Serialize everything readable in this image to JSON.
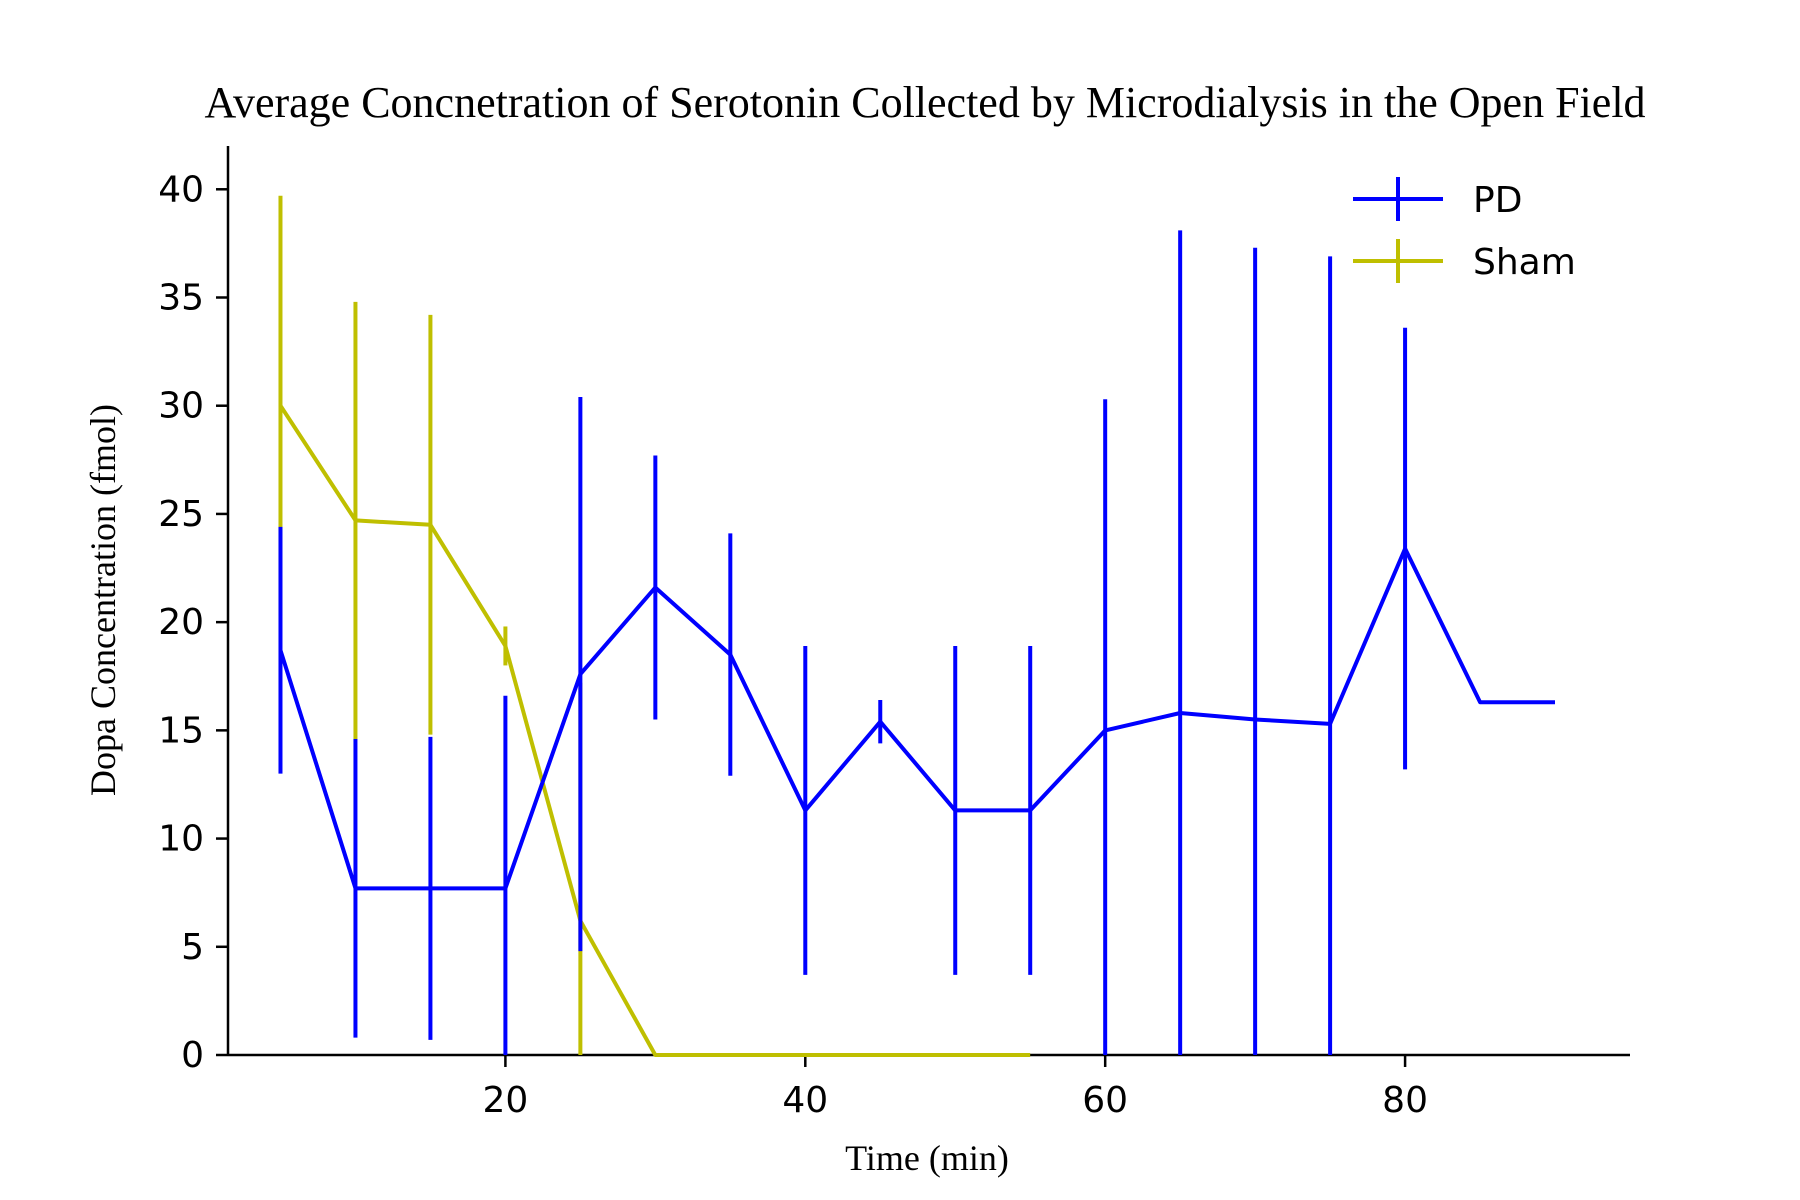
{
  "chart_data": {
    "type": "line",
    "title": "Average Concnetration of Serotonin Collected by Microdialysis in the Open Field",
    "xlabel": "Time (min)",
    "ylabel": "Dopa Concentration (fmol)",
    "xlim": [
      1.5,
      95
    ],
    "ylim": [
      0,
      42
    ],
    "xticks": [
      20,
      40,
      60,
      80
    ],
    "yticks": [
      0,
      5,
      10,
      15,
      20,
      25,
      30,
      35,
      40
    ],
    "grid": false,
    "legend_position": "top-right",
    "error_bars": true,
    "series": [
      {
        "name": "PD",
        "color": "#0000ff",
        "x": [
          5,
          10,
          15,
          20,
          25,
          30,
          35,
          40,
          45,
          50,
          55,
          60,
          65,
          70,
          75,
          80,
          85,
          90
        ],
        "y": [
          18.7,
          7.7,
          7.7,
          7.7,
          17.6,
          21.6,
          18.5,
          11.3,
          15.4,
          11.3,
          11.3,
          15.0,
          15.8,
          15.5,
          15.3,
          23.4,
          16.3,
          16.3
        ],
        "err": [
          5.7,
          6.9,
          7.0,
          8.9,
          12.8,
          6.1,
          5.6,
          7.6,
          1.0,
          7.6,
          7.6,
          15.3,
          22.3,
          21.8,
          21.6,
          10.2,
          null,
          null
        ]
      },
      {
        "name": "Sham",
        "color": "#bfbf00",
        "x": [
          5,
          10,
          15,
          20,
          25,
          30,
          35,
          40,
          45,
          50,
          55
        ],
        "y": [
          30.0,
          24.7,
          24.5,
          18.9,
          6.2,
          0,
          0,
          0,
          0,
          0,
          0
        ],
        "err": [
          9.7,
          10.1,
          9.7,
          0.9,
          11.0,
          0,
          0,
          0,
          0,
          0,
          0
        ]
      }
    ]
  }
}
